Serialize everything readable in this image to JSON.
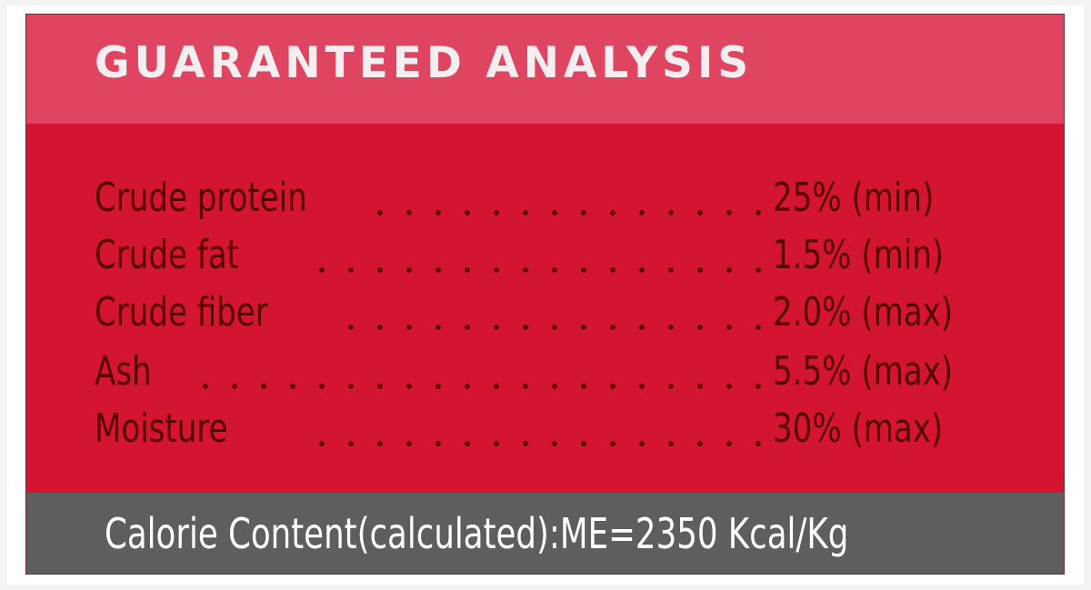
{
  "header": {
    "title": "GUARANTEED ANALYSIS"
  },
  "analysis": [
    {
      "label": "Crude protein",
      "value": "25% (min)"
    },
    {
      "label": "Crude fat",
      "value": "1.5% (min)"
    },
    {
      "label": "Crude fiber",
      "value": "2.0% (max)"
    },
    {
      "label": "Ash",
      "value": "5.5% (max)"
    },
    {
      "label": "Moisture",
      "value": "30% (max)"
    }
  ],
  "footer": {
    "calorie": "Calorie Content(calculated):ME=2350 Kcal/Kg"
  },
  "colors": {
    "header": "#df4460",
    "body": "#d41532",
    "footer": "#5e5e5e",
    "text": "#560000"
  }
}
